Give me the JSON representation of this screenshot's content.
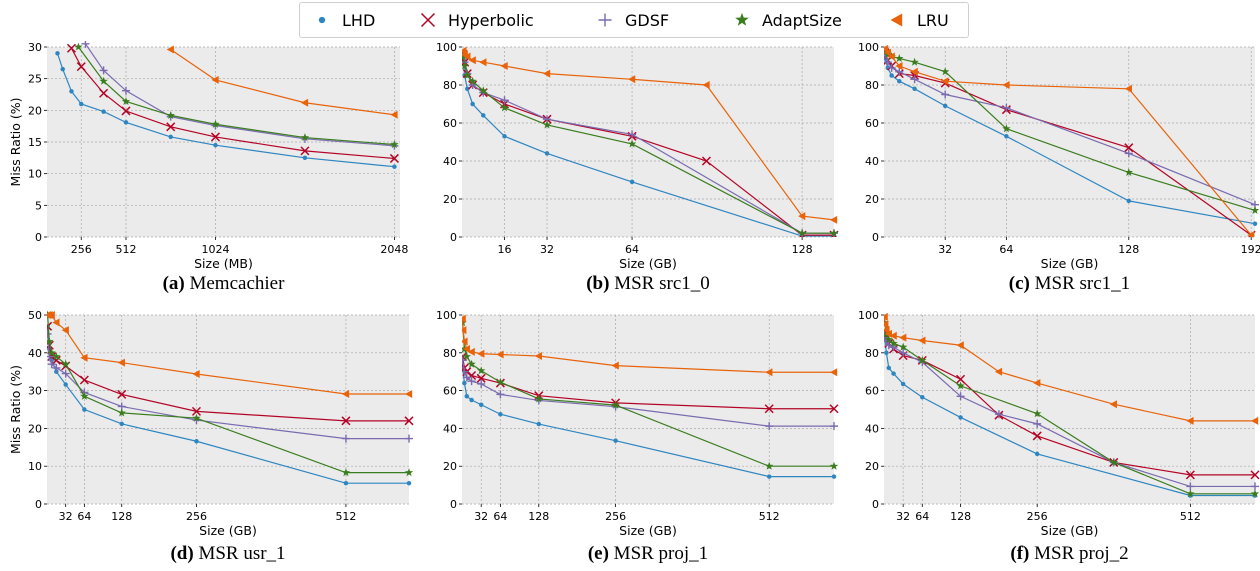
{
  "legend": [
    {
      "name": "LHD",
      "color": "#2e86c1",
      "marker": "dot"
    },
    {
      "name": "Hyperbolic",
      "color": "#b40426",
      "marker": "x"
    },
    {
      "name": "GDSF",
      "color": "#7a6bb0",
      "marker": "plus"
    },
    {
      "name": "AdaptSize",
      "color": "#3a7d1e",
      "marker": "star"
    },
    {
      "name": "LRU",
      "color": "#e8630a",
      "marker": "triangle-left"
    }
  ],
  "chart_data": [
    {
      "type": "line",
      "panel": "(a)",
      "caption": "Memcachier",
      "xlabel": "Size (MB)",
      "ylabel": "Miss Ratio (%)",
      "xlim": [
        60,
        2080
      ],
      "ylim": [
        0,
        30
      ],
      "xticks": [
        256,
        512,
        1024,
        2048
      ],
      "yticks": [
        0,
        5,
        10,
        15,
        20,
        25,
        30
      ],
      "grid": true,
      "series": [
        {
          "name": "LHD",
          "x": [
            120,
            150,
            200,
            256,
            384,
            512,
            768,
            1024,
            1536,
            2048
          ],
          "y": [
            29,
            26.5,
            23,
            21,
            19.8,
            18.1,
            15.8,
            14.5,
            12.5,
            11.1
          ]
        },
        {
          "name": "Hyperbolic",
          "x": [
            200,
            256,
            384,
            512,
            768,
            1024,
            1536,
            2048
          ],
          "y": [
            29.8,
            26.9,
            22.7,
            19.9,
            17.4,
            15.8,
            13.6,
            12.4
          ]
        },
        {
          "name": "GDSF",
          "x": [
            280,
            384,
            512,
            768,
            1024,
            1536,
            2048
          ],
          "y": [
            30.5,
            26.3,
            23.1,
            19.0,
            17.6,
            15.5,
            14.4
          ]
        },
        {
          "name": "AdaptSize",
          "x": [
            240,
            384,
            512,
            768,
            1024,
            1536,
            2048
          ],
          "y": [
            30,
            24.6,
            21.4,
            19.2,
            17.8,
            15.7,
            14.6
          ]
        },
        {
          "name": "LRU",
          "x": [
            768,
            1024,
            1536,
            2048
          ],
          "y": [
            29.6,
            24.8,
            21.2,
            19.3
          ]
        }
      ]
    },
    {
      "type": "line",
      "panel": "(b)",
      "caption": "MSR src1_0",
      "xlabel": "Size (GB)",
      "ylabel": "",
      "xlim": [
        0,
        140
      ],
      "ylim": [
        0,
        100
      ],
      "xticks": [
        16,
        32,
        64,
        128
      ],
      "yticks": [
        0,
        20,
        40,
        60,
        80,
        100
      ],
      "grid": true,
      "series": [
        {
          "name": "LHD",
          "x": [
            0.5,
            1,
            2,
            4,
            8,
            16,
            32,
            64,
            128,
            140
          ],
          "y": [
            93,
            85,
            78,
            70,
            64,
            53,
            44,
            29,
            0.5,
            0.5
          ]
        },
        {
          "name": "Hyperbolic",
          "x": [
            0.5,
            1,
            2,
            4,
            8,
            16,
            32,
            64,
            92,
            128,
            140
          ],
          "y": [
            96,
            92,
            86,
            80,
            76,
            70,
            62,
            53,
            40,
            1,
            1
          ]
        },
        {
          "name": "GDSF",
          "x": [
            0.5,
            1,
            2,
            4,
            8,
            16,
            32,
            64,
            128,
            140
          ],
          "y": [
            96,
            92,
            86,
            80,
            76,
            72,
            62,
            54,
            2,
            2
          ]
        },
        {
          "name": "AdaptSize",
          "x": [
            0.5,
            1,
            2,
            4,
            8,
            16,
            32,
            64,
            128,
            140
          ],
          "y": [
            95,
            90,
            85,
            82,
            77,
            68,
            59,
            49,
            2,
            2
          ]
        },
        {
          "name": "LRU",
          "x": [
            0.5,
            1,
            2,
            4,
            8,
            16,
            32,
            64,
            92,
            128,
            140
          ],
          "y": [
            98,
            96,
            95,
            93,
            92,
            90,
            86,
            83,
            80,
            11,
            9
          ]
        }
      ]
    },
    {
      "type": "line",
      "panel": "(c)",
      "caption": "MSR src1_1",
      "xlabel": "Size (GB)",
      "ylabel": "",
      "xlim": [
        0,
        194
      ],
      "ylim": [
        0,
        100
      ],
      "xticks": [
        32,
        64,
        128,
        192
      ],
      "yticks": [
        0,
        20,
        40,
        60,
        80,
        100
      ],
      "grid": true,
      "series": [
        {
          "name": "LHD",
          "x": [
            0.5,
            2,
            4,
            8,
            16,
            32,
            64,
            128,
            194
          ],
          "y": [
            94,
            89,
            85,
            82,
            78,
            69,
            53,
            19,
            7
          ]
        },
        {
          "name": "Hyperbolic",
          "x": [
            0.5,
            2,
            4,
            8,
            16,
            32,
            64,
            128,
            192
          ],
          "y": [
            97,
            93,
            90,
            86,
            85,
            81,
            67,
            47,
            1
          ]
        },
        {
          "name": "GDSF",
          "x": [
            0.5,
            2,
            4,
            8,
            16,
            32,
            64,
            128,
            194
          ],
          "y": [
            96,
            92,
            89,
            87,
            83,
            75,
            68,
            44,
            17
          ]
        },
        {
          "name": "AdaptSize",
          "x": [
            0.5,
            2,
            4,
            8,
            16,
            32,
            64,
            128,
            194
          ],
          "y": [
            98,
            96,
            95,
            94,
            92,
            87,
            57,
            34,
            14
          ]
        },
        {
          "name": "LRU",
          "x": [
            0.5,
            2,
            4,
            8,
            16,
            32,
            64,
            128,
            192
          ],
          "y": [
            99,
            97,
            95,
            90,
            87,
            82,
            80,
            78,
            1
          ]
        }
      ]
    },
    {
      "type": "line",
      "panel": "(d)",
      "caption": "MSR usr_1",
      "xlabel": "Size (GB)",
      "ylabel": "Miss Ratio (%)",
      "xlim": [
        0,
        620
      ],
      "ylim": [
        0,
        50
      ],
      "xticks": [
        32,
        64,
        128,
        256,
        512
      ],
      "yticks": [
        0,
        10,
        20,
        30,
        40,
        50
      ],
      "grid": true,
      "series": [
        {
          "name": "LHD",
          "x": [
            1,
            4,
            8,
            16,
            32,
            64,
            128,
            256,
            512,
            620
          ],
          "y": [
            47,
            41,
            38,
            35,
            31.6,
            25,
            21.2,
            16.6,
            5.5,
            5.5
          ]
        },
        {
          "name": "Hyperbolic",
          "x": [
            1,
            4,
            8,
            16,
            32,
            64,
            128,
            256,
            512,
            620
          ],
          "y": [
            47,
            42,
            39,
            38,
            36.5,
            32.8,
            29,
            24.5,
            22,
            22
          ]
        },
        {
          "name": "GDSF",
          "x": [
            1,
            4,
            8,
            16,
            32,
            64,
            128,
            256,
            512,
            620
          ],
          "y": [
            45,
            39,
            37,
            36,
            34.5,
            29.5,
            25.8,
            22.2,
            17.3,
            17.3
          ]
        },
        {
          "name": "AdaptSize",
          "x": [
            1,
            4,
            8,
            16,
            32,
            64,
            128,
            256,
            512,
            620
          ],
          "y": [
            50,
            43,
            40,
            39,
            37,
            28.5,
            24.1,
            22.7,
            8.3,
            8.3
          ]
        },
        {
          "name": "LRU",
          "x": [
            1,
            4,
            8,
            16,
            32,
            64,
            128,
            256,
            512,
            620
          ],
          "y": [
            50,
            50,
            50,
            48,
            46,
            38.7,
            37.4,
            34.4,
            29.1,
            29.1
          ]
        }
      ]
    },
    {
      "type": "line",
      "panel": "(e)",
      "caption": "MSR proj_1",
      "xlabel": "Size (GB)",
      "ylabel": "",
      "xlim": [
        0,
        620
      ],
      "ylim": [
        0,
        100
      ],
      "xticks": [
        32,
        64,
        128,
        256,
        512
      ],
      "yticks": [
        0,
        20,
        40,
        60,
        80,
        100
      ],
      "grid": true,
      "series": [
        {
          "name": "LHD",
          "x": [
            1,
            4,
            8,
            16,
            32,
            64,
            128,
            256,
            512,
            620
          ],
          "y": [
            73,
            64,
            57,
            55,
            52.5,
            47.5,
            42.3,
            33.5,
            14.5,
            14.5
          ]
        },
        {
          "name": "Hyperbolic",
          "x": [
            1,
            4,
            8,
            16,
            32,
            64,
            128,
            256,
            512,
            620
          ],
          "y": [
            78,
            72,
            70,
            68,
            66.5,
            64,
            57.3,
            53.5,
            50.4,
            50.4
          ]
        },
        {
          "name": "GDSF",
          "x": [
            1,
            4,
            8,
            16,
            32,
            64,
            128,
            256,
            512,
            620
          ],
          "y": [
            76,
            70,
            67,
            65,
            63.5,
            58,
            54.8,
            51.5,
            41.2,
            41.2
          ]
        },
        {
          "name": "AdaptSize",
          "x": [
            1,
            4,
            8,
            16,
            32,
            64,
            128,
            256,
            512,
            620
          ],
          "y": [
            96,
            82,
            78,
            74,
            70.5,
            64.5,
            55.6,
            52.3,
            20,
            20
          ]
        },
        {
          "name": "LRU",
          "x": [
            1,
            2,
            4,
            8,
            16,
            32,
            64,
            128,
            256,
            512,
            620
          ],
          "y": [
            98,
            92,
            86,
            82,
            80.5,
            79.5,
            79.1,
            78.3,
            73.2,
            69.7,
            69.7
          ]
        }
      ]
    },
    {
      "type": "line",
      "panel": "(f)",
      "caption": "MSR proj_2",
      "xlabel": "Size (GB)",
      "ylabel": "",
      "xlim": [
        0,
        620
      ],
      "ylim": [
        0,
        100
      ],
      "xticks": [
        32,
        64,
        128,
        256,
        512
      ],
      "yticks": [
        0,
        20,
        40,
        60,
        80,
        100
      ],
      "grid": true,
      "series": [
        {
          "name": "LHD",
          "x": [
            1,
            4,
            8,
            16,
            32,
            64,
            128,
            256,
            512,
            620
          ],
          "y": [
            88,
            80,
            72,
            69,
            63.5,
            56.5,
            45.8,
            26.5,
            4.5,
            4.5
          ]
        },
        {
          "name": "Hyperbolic",
          "x": [
            1,
            4,
            8,
            16,
            32,
            64,
            128,
            192,
            256,
            384,
            512,
            620
          ],
          "y": [
            92,
            88,
            85,
            82,
            78.5,
            76,
            66,
            47,
            36,
            22,
            15.4,
            15.4
          ]
        },
        {
          "name": "GDSF",
          "x": [
            1,
            4,
            8,
            16,
            32,
            64,
            128,
            192,
            256,
            384,
            512,
            620
          ],
          "y": [
            88,
            86,
            84,
            83,
            80,
            75,
            57,
            47.5,
            42.4,
            22,
            9.3,
            9.3
          ]
        },
        {
          "name": "AdaptSize",
          "x": [
            1,
            4,
            8,
            16,
            32,
            64,
            128,
            256,
            384,
            512,
            620
          ],
          "y": [
            96,
            90,
            87,
            85,
            83,
            76,
            62.5,
            47.8,
            22,
            5.4,
            5.4
          ]
        },
        {
          "name": "LRU",
          "x": [
            1,
            2,
            4,
            8,
            16,
            32,
            64,
            128,
            192,
            256,
            384,
            512,
            620
          ],
          "y": [
            99,
            95,
            92,
            90,
            89,
            88,
            86.5,
            84,
            70,
            64,
            52.8,
            44,
            44
          ]
        }
      ]
    }
  ]
}
